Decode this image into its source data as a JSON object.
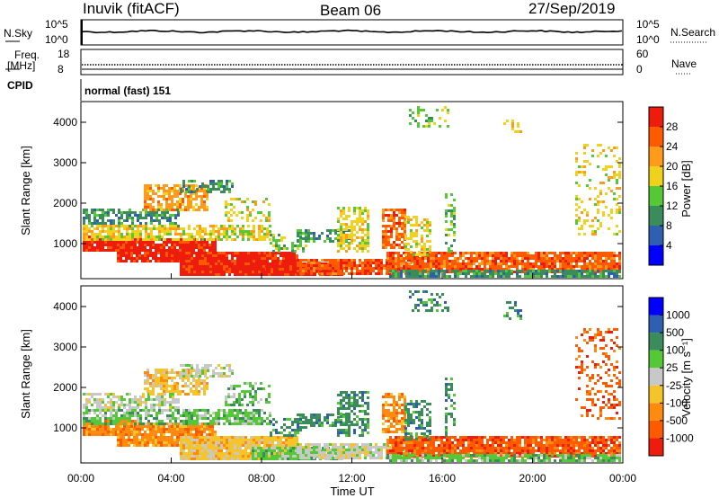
{
  "header": {
    "title": "Inuvik (fitACF)",
    "beam": "Beam 06",
    "date": "27/Sep/2019"
  },
  "top_panels": {
    "nsky_label": "N.Sky",
    "nsky_ticks_left": [
      "10^5",
      "10^0"
    ],
    "nsky_ticks_right": [
      "10^5",
      "10^0"
    ],
    "nsearch_label": "N.Search",
    "freq_label": "Freq.",
    "freq_unit": "[MHz]",
    "freq_ticks": [
      "18",
      "8"
    ],
    "nave_ticks": [
      "60",
      "0"
    ],
    "nave_label": "Nave",
    "cpid_label": "CPID",
    "cpid_value": "normal (fast) 151"
  },
  "colors": {
    "power": [
      "#0000ff",
      "#2f5fb0",
      "#3a8c5a",
      "#55c838",
      "#f0d21e",
      "#ff9a1a",
      "#ff5a00",
      "#ee1c0c"
    ],
    "velocity": [
      "#ee1c0c",
      "#ff5a00",
      "#ff8a10",
      "#f5c32a",
      "#c8c8c8",
      "#55c838",
      "#3a8c5a",
      "#2f5fb0",
      "#0000ff"
    ]
  },
  "chart_data": [
    {
      "type": "heatmap",
      "name": "power",
      "ylabel": "Slant Range [km]",
      "y_ticks": [
        "1000",
        "2000",
        "3000",
        "4000"
      ],
      "colorbar_label": "Power [dB]",
      "colorbar_ticks": [
        "4",
        "8",
        "12",
        "16",
        "20",
        "24",
        "28"
      ],
      "x_ticks": [
        "00:00",
        "04:00",
        "08:00",
        "12:00",
        "16:00",
        "20:00",
        "00:00"
      ],
      "xlabel": "Time UT"
    },
    {
      "type": "heatmap",
      "name": "velocity",
      "ylabel": "Slant Range [km]",
      "y_ticks": [
        "1000",
        "2000",
        "3000",
        "4000"
      ],
      "colorbar_label": "Velocity [m s⁻¹]",
      "colorbar_ticks": [
        "1000",
        "500",
        "100",
        "25",
        "-25",
        "-100",
        "-500",
        "-1000"
      ],
      "x_ticks": [
        "00:00",
        "04:00",
        "08:00",
        "12:00",
        "16:00",
        "20:00",
        "00:00"
      ],
      "xlabel": "Time UT"
    }
  ]
}
